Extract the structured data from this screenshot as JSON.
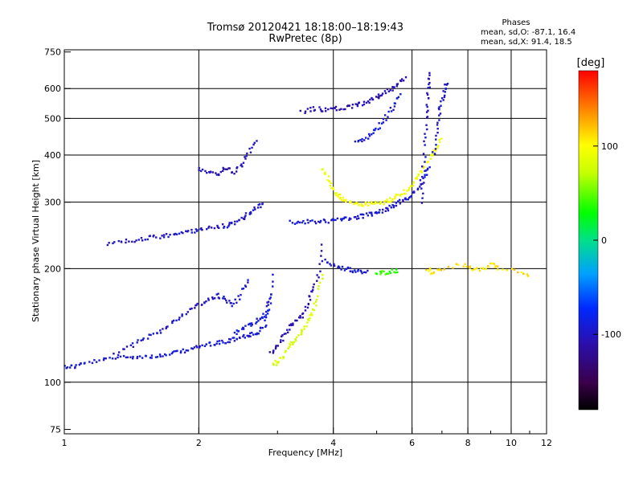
{
  "chart_data": {
    "type": "scatter",
    "title": "Tromsø 20120421 18:18:00–18:19:43",
    "subtitle": "RwPretec (8p)",
    "xlabel": "Frequency [MHz]",
    "ylabel": "Stationary phase Virtual Height [km]",
    "x_scale": "log",
    "y_scale": "log",
    "xlim": [
      1,
      12
    ],
    "ylim": [
      73,
      760
    ],
    "x_ticks": [
      1,
      2,
      4,
      6,
      8,
      10,
      12
    ],
    "x_tick_labels": [
      "1",
      "2",
      "4",
      "6",
      "8",
      "10",
      "12"
    ],
    "x_minor_ticks": [
      3,
      5,
      7,
      9,
      11
    ],
    "y_ticks": [
      75,
      100,
      200,
      300,
      400,
      500,
      600,
      750
    ],
    "y_tick_labels": [
      "75",
      "100",
      "200",
      "300",
      "400",
      "500",
      "600",
      "750"
    ],
    "grid": true,
    "grid_x": [
      2,
      4,
      6,
      8,
      10
    ],
    "grid_y": [
      100,
      200,
      300,
      400,
      500,
      600
    ],
    "phases_box": {
      "title": "Phases",
      "line1": "mean, sd,O:  -87.1, 16.4",
      "line2": "mean, sd,X:  91.4, 18.5"
    },
    "colorbar": {
      "label": "[deg]",
      "range": [
        -180,
        180
      ],
      "ticks": [
        100,
        0,
        -100
      ],
      "tick_labels": [
        "100",
        "0",
        "-100"
      ]
    },
    "series": [
      {
        "name": "O",
        "phase_mean": -87.1,
        "phase_sd": 16.4
      },
      {
        "name": "X",
        "phase_mean": 91.4,
        "phase_sd": 18.5
      }
    ],
    "traces": [
      {
        "freq": [
          1.0,
          1.05,
          1.1,
          1.2,
          1.3,
          1.4,
          1.5,
          1.6,
          1.7,
          1.8,
          1.9,
          2.0,
          2.1,
          2.2,
          2.3,
          2.4,
          2.5,
          2.6,
          2.7,
          2.8,
          2.85,
          2.9
        ],
        "height": [
          110,
          110,
          112,
          114,
          116,
          117,
          117,
          117,
          118,
          120,
          122,
          124,
          126,
          127,
          128,
          130,
          132,
          133,
          135,
          140,
          155,
          175
        ],
        "phase": -95
      },
      {
        "freq": [
          1.3,
          1.4,
          1.5,
          1.6,
          1.7,
          1.8,
          1.9,
          2.0,
          2.1,
          2.2,
          2.3,
          2.4,
          2.5,
          2.6
        ],
        "height": [
          118,
          124,
          130,
          135,
          140,
          148,
          155,
          160,
          165,
          170,
          165,
          160,
          175,
          190
        ],
        "phase": -100
      },
      {
        "freq": [
          2.4,
          2.5,
          2.6,
          2.7,
          2.8,
          2.9,
          2.95
        ],
        "height": [
          135,
          138,
          142,
          145,
          150,
          160,
          200
        ],
        "phase": -92
      },
      {
        "freq": [
          1.25,
          1.35,
          1.45,
          1.55,
          1.65,
          1.75,
          1.85,
          1.95,
          2.05,
          2.2,
          2.3,
          2.4,
          2.5,
          2.6,
          2.7,
          2.8
        ],
        "height": [
          232,
          236,
          238,
          241,
          243,
          246,
          249,
          252,
          255,
          258,
          260,
          265,
          272,
          280,
          290,
          300
        ],
        "phase": -100
      },
      {
        "freq": [
          2.0,
          2.1,
          2.2,
          2.3,
          2.4,
          2.5,
          2.6,
          2.7
        ],
        "height": [
          370,
          360,
          355,
          370,
          360,
          380,
          410,
          440
        ],
        "phase": -105
      },
      {
        "freq": [
          2.9,
          3.0,
          3.1,
          3.2,
          3.3,
          3.4,
          3.5,
          3.6,
          3.7,
          3.8
        ],
        "height": [
          120,
          125,
          132,
          140,
          145,
          150,
          160,
          175,
          190,
          240
        ],
        "phase": -110
      },
      {
        "freq": [
          2.95,
          3.0,
          3.1,
          3.2,
          3.3,
          3.4,
          3.5,
          3.6,
          3.7,
          3.8
        ],
        "height": [
          112,
          113,
          118,
          125,
          130,
          136,
          145,
          155,
          170,
          200
        ],
        "phase": 80
      },
      {
        "freq": [
          3.2,
          3.4,
          3.6,
          3.8,
          4.0,
          4.2,
          4.4,
          4.6,
          4.8,
          5.0,
          5.2,
          5.4,
          5.6,
          5.8,
          6.0,
          6.2,
          6.4,
          6.6
        ],
        "height": [
          265,
          266,
          266,
          267,
          268,
          270,
          272,
          275,
          278,
          282,
          286,
          292,
          298,
          305,
          315,
          330,
          350,
          380
        ],
        "phase": -95
      },
      {
        "freq": [
          3.8,
          3.9,
          4.0,
          4.1,
          4.2,
          4.4,
          4.6,
          4.8,
          5.0,
          5.2,
          5.4,
          5.6,
          5.8,
          6.0,
          6.2,
          6.4,
          6.6,
          6.8,
          7.0
        ],
        "height": [
          370,
          345,
          325,
          312,
          305,
          298,
          296,
          296,
          298,
          300,
          305,
          312,
          320,
          335,
          350,
          370,
          395,
          420,
          445
        ],
        "phase": 95
      },
      {
        "freq": [
          4.5,
          4.7,
          4.9,
          5.1,
          5.3,
          5.5,
          5.7
        ],
        "height": [
          430,
          440,
          460,
          480,
          510,
          545,
          590
        ],
        "phase": -95
      },
      {
        "freq": [
          3.4,
          3.6,
          3.8,
          4.0,
          4.2,
          4.4,
          4.6,
          4.8,
          5.0,
          5.2,
          5.4,
          5.6,
          5.8
        ],
        "height": [
          520,
          530,
          528,
          530,
          532,
          538,
          545,
          555,
          570,
          585,
          600,
          620,
          640
        ],
        "phase": -110
      },
      {
        "freq": [
          6.3,
          6.35,
          6.4,
          6.45,
          6.5,
          6.55,
          6.6
        ],
        "height": [
          300,
          350,
          420,
          500,
          560,
          620,
          660
        ],
        "phase": -105
      },
      {
        "freq": [
          6.7,
          6.8,
          6.9,
          7.0,
          7.1,
          7.2
        ],
        "height": [
          400,
          460,
          520,
          560,
          600,
          630
        ],
        "phase": -100
      },
      {
        "freq": [
          3.8,
          4.0,
          4.2,
          4.4,
          4.6,
          4.8
        ],
        "height": [
          210,
          205,
          200,
          198,
          196,
          195
        ],
        "phase": -95
      },
      {
        "freq": [
          5.0,
          5.2,
          5.4,
          5.6
        ],
        "height": [
          196,
          195,
          197,
          198
        ],
        "phase": 40
      },
      {
        "freq": [
          6.5,
          6.6,
          7.0,
          7.8,
          8.2,
          8.6,
          9.0,
          9.4,
          10.6,
          11.0
        ],
        "height": [
          200,
          195,
          200,
          205,
          200,
          198,
          205,
          200,
          195,
          193
        ],
        "phase": 110
      }
    ]
  }
}
